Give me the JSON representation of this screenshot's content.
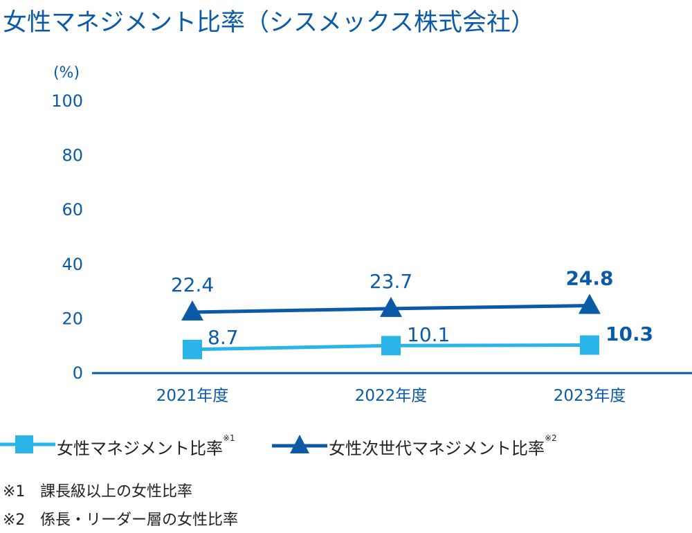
{
  "title": "女性マネジメント比率（シスメックス株式会社）",
  "chart_data": {
    "type": "line",
    "title": "女性マネジメント比率（シスメックス株式会社）",
    "y_unit": "(%)",
    "ylim": [
      0,
      100
    ],
    "y_ticks": [
      0,
      20,
      40,
      60,
      80,
      100
    ],
    "categories": [
      "2021年度",
      "2022年度",
      "2023年度"
    ],
    "series": [
      {
        "name": "女性マネジメント比率",
        "note_mark": "※1",
        "marker": "square",
        "color": "#2ab4e8",
        "values": [
          8.7,
          10.1,
          10.3
        ],
        "value_labels": [
          "8.7",
          "10.1",
          "10.3"
        ]
      },
      {
        "name": "女性次世代マネジメント比率",
        "note_mark": "※2",
        "marker": "triangle",
        "color": "#0a5aa8",
        "values": [
          22.4,
          23.7,
          24.8
        ],
        "value_labels": [
          "22.4",
          "23.7",
          "24.8"
        ]
      }
    ],
    "grid": false,
    "legend_position": "bottom-left"
  },
  "notes": [
    {
      "mark": "※1",
      "text": "課長級以上の女性比率"
    },
    {
      "mark": "※2",
      "text": "係長・リーダー層の女性比率"
    }
  ],
  "colors": {
    "axis": "#0a5aa8",
    "text_blue": "#0a5aa8",
    "light_blue": "#2ab4e8"
  }
}
